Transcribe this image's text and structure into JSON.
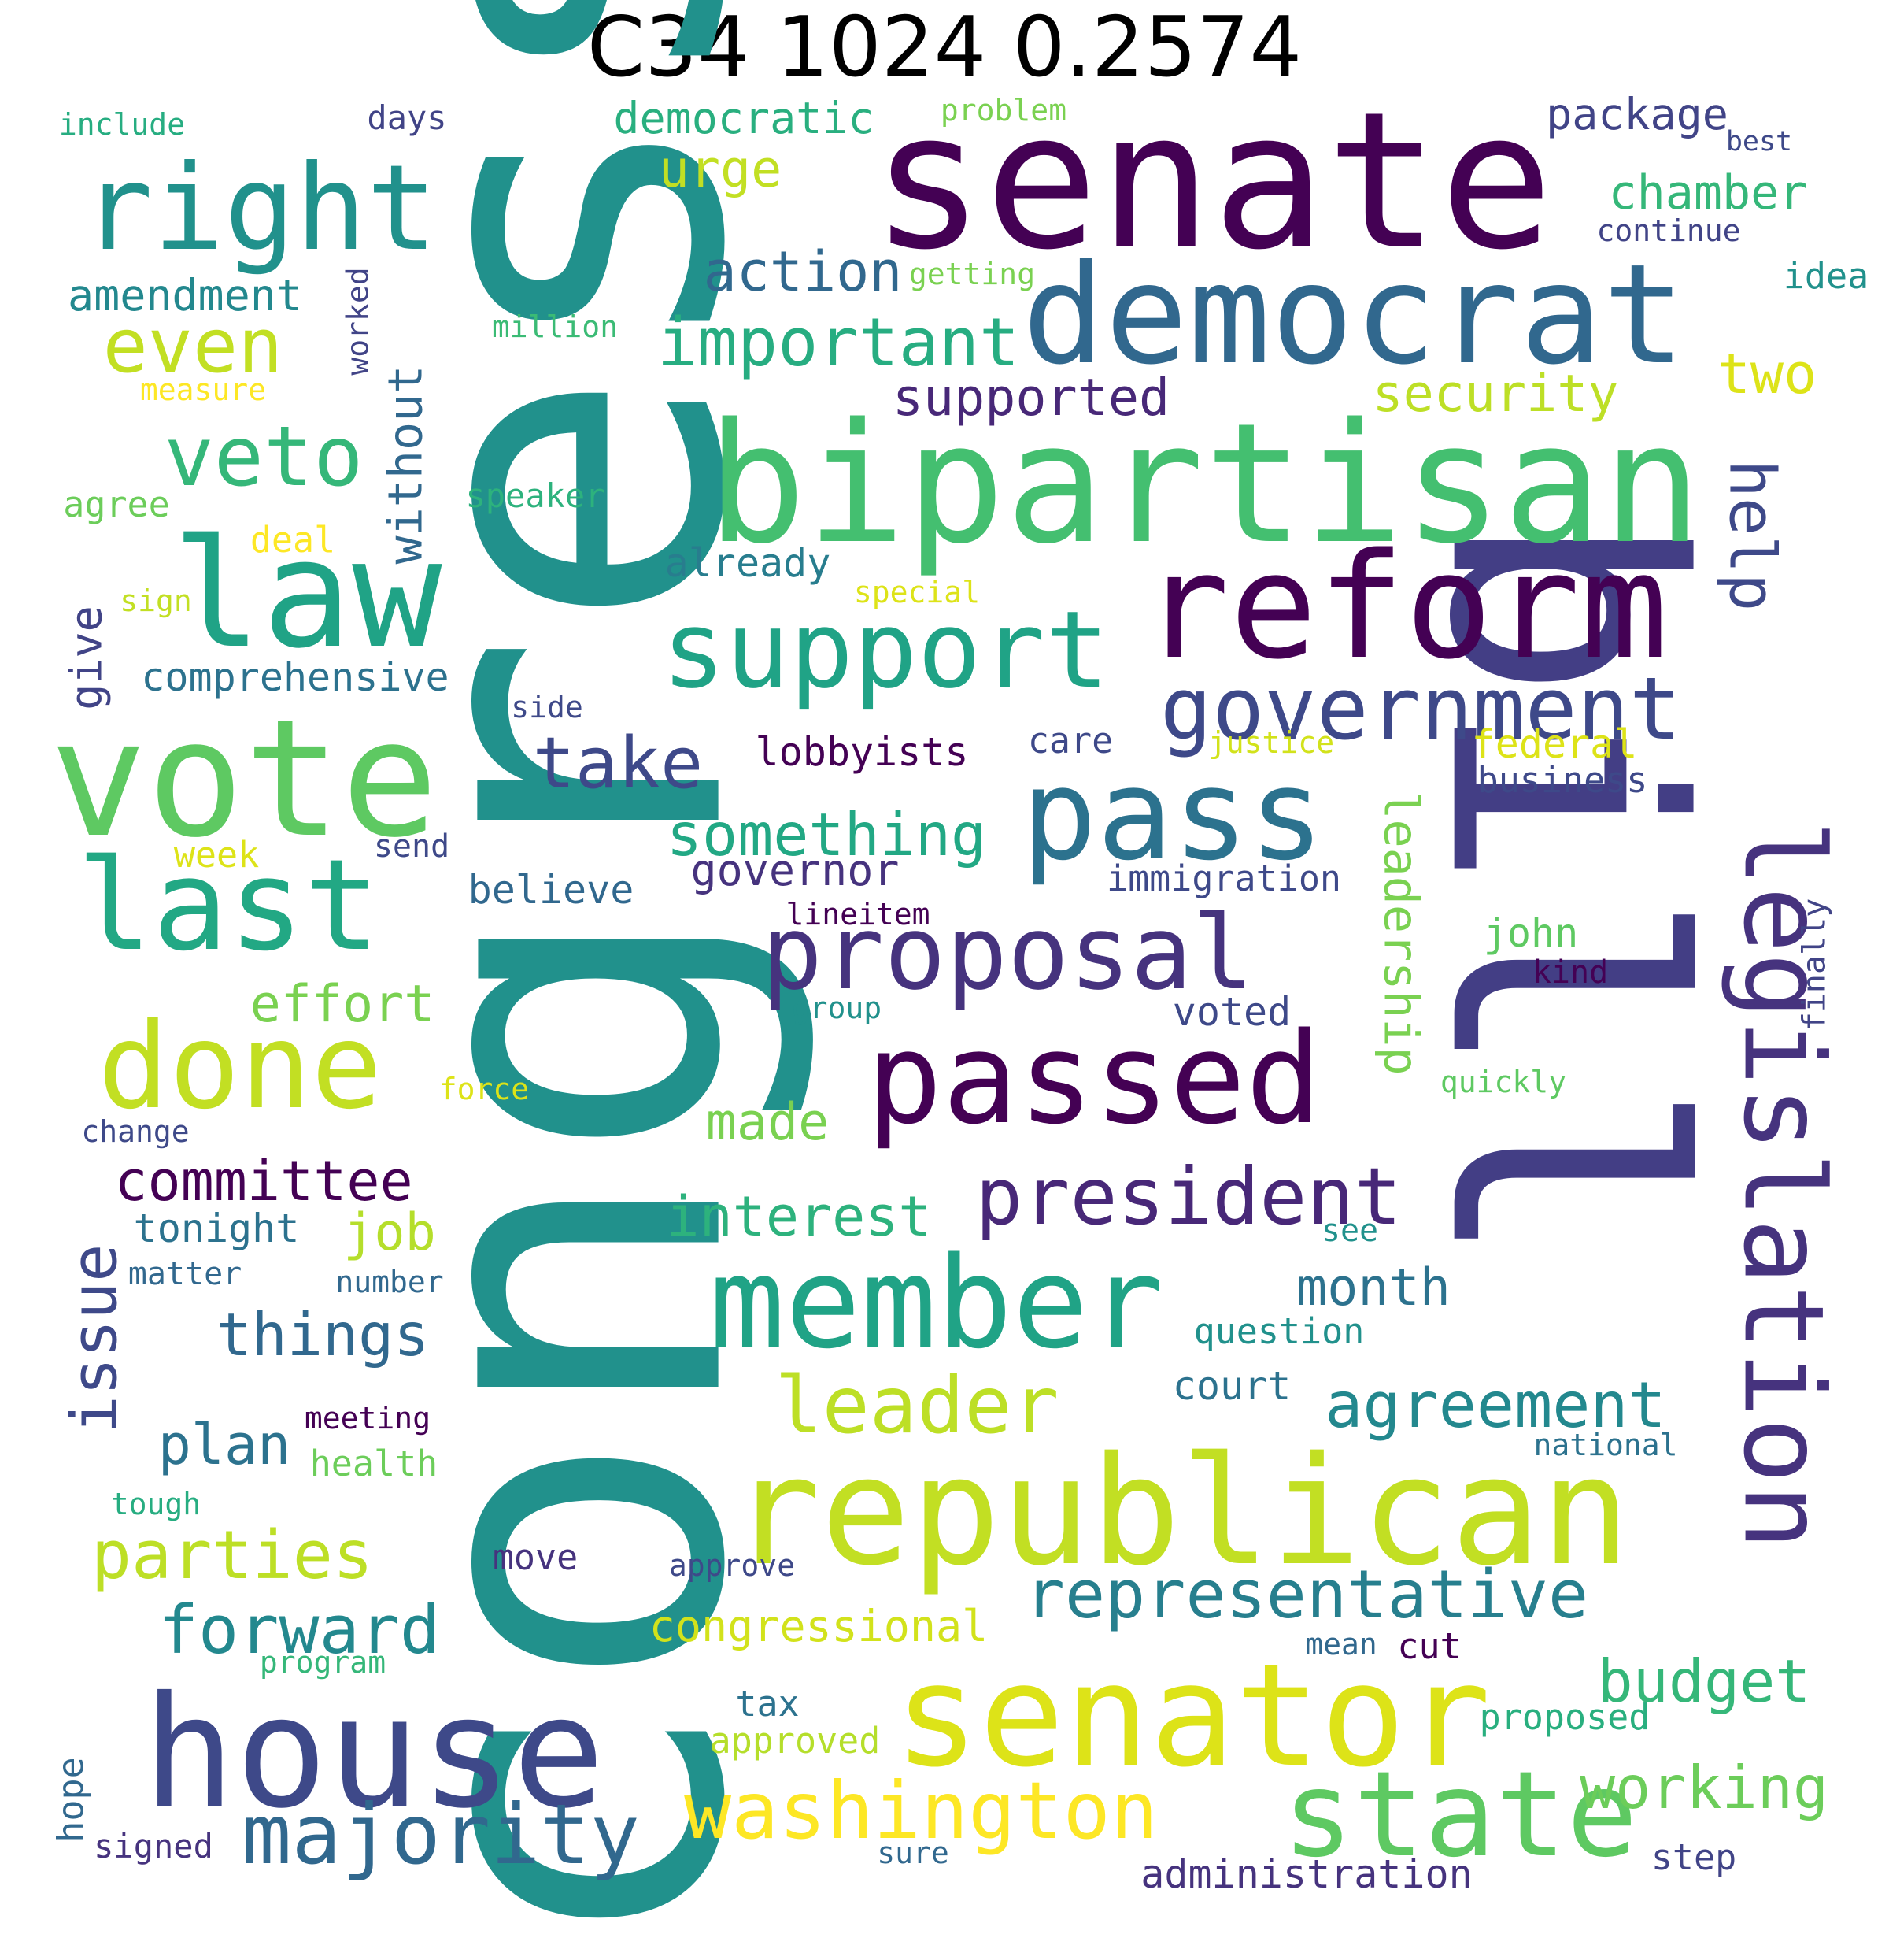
{
  "title": "C34 1024 0.2574",
  "colors": {
    "background": "#ffffff",
    "title": "#000000",
    "palette": "viridis"
  },
  "words": [
    {
      "text": "congress",
      "color": "#21918c",
      "rot": -90
    },
    {
      "text": "bill",
      "color": "#433e85",
      "rot": 90
    },
    {
      "text": "senate",
      "color": "#440154",
      "rot": 0
    },
    {
      "text": "bipartisan",
      "color": "#44bf70",
      "rot": 0
    },
    {
      "text": "democrat",
      "color": "#31688e",
      "rot": 0
    },
    {
      "text": "reform",
      "color": "#440154",
      "rot": 0
    },
    {
      "text": "republican",
      "color": "#c2df23",
      "rot": 0
    },
    {
      "text": "senator",
      "color": "#dde318",
      "rot": 0
    },
    {
      "text": "house",
      "color": "#3e4989",
      "rot": 0
    },
    {
      "text": "vote",
      "color": "#5ec962",
      "rot": 0
    },
    {
      "text": "law",
      "color": "#20a386",
      "rot": 0
    },
    {
      "text": "right",
      "color": "#21918c",
      "rot": 0
    },
    {
      "text": "legislation",
      "color": "#46337e",
      "rot": 90
    },
    {
      "text": "pass",
      "color": "#2c728e",
      "rot": 0
    },
    {
      "text": "passed",
      "color": "#440154",
      "rot": 0
    },
    {
      "text": "member",
      "color": "#20a386",
      "rot": 0
    },
    {
      "text": "support",
      "color": "#20a386",
      "rot": 0
    },
    {
      "text": "state",
      "color": "#5ec962",
      "rot": 0
    },
    {
      "text": "last",
      "color": "#22a884",
      "rot": 0
    },
    {
      "text": "done",
      "color": "#c2df23",
      "rot": 0
    },
    {
      "text": "proposal",
      "color": "#46337e",
      "rot": 0
    },
    {
      "text": "government",
      "color": "#3e4989",
      "rot": 0
    },
    {
      "text": "washington",
      "color": "#fde725",
      "rot": 0
    },
    {
      "text": "president",
      "color": "#482878",
      "rot": 0
    },
    {
      "text": "majority",
      "color": "#31688e",
      "rot": 0
    },
    {
      "text": "representative",
      "color": "#277f8e",
      "rot": 0
    },
    {
      "text": "leader",
      "color": "#bddf26",
      "rot": 0
    },
    {
      "text": "veto",
      "color": "#35b779",
      "rot": 0
    },
    {
      "text": "even",
      "color": "#c2df23",
      "rot": 0
    },
    {
      "text": "important",
      "color": "#27ad81",
      "rot": 0
    },
    {
      "text": "take",
      "color": "#3e4989",
      "rot": 0
    },
    {
      "text": "something",
      "color": "#22a884",
      "rot": 0
    },
    {
      "text": "help",
      "color": "#3e4989",
      "rot": 90
    },
    {
      "text": "leadership",
      "color": "#7ad151",
      "rot": 90
    },
    {
      "text": "parties",
      "color": "#bddf26",
      "rot": 0
    },
    {
      "text": "forward",
      "color": "#23888e",
      "rot": 0
    },
    {
      "text": "issue",
      "color": "#3e4989",
      "rot": -90
    },
    {
      "text": "interest",
      "color": "#2db27d",
      "rot": 0
    },
    {
      "text": "agreement",
      "color": "#23888e",
      "rot": 0
    },
    {
      "text": "budget",
      "color": "#35b779",
      "rot": 0
    },
    {
      "text": "working",
      "color": "#6ccd5a",
      "rot": 0
    },
    {
      "text": "committee",
      "color": "#440154",
      "rot": 0
    },
    {
      "text": "things",
      "color": "#31688e",
      "rot": 0
    },
    {
      "text": "plan",
      "color": "#2c728e",
      "rot": 0
    },
    {
      "text": "without",
      "color": "#31688e",
      "rot": -90
    },
    {
      "text": "action",
      "color": "#31688e",
      "rot": 0
    },
    {
      "text": "supported",
      "color": "#482878",
      "rot": 0
    },
    {
      "text": "security",
      "color": "#bddf26",
      "rot": 0
    },
    {
      "text": "two",
      "color": "#dde318",
      "rot": 0
    },
    {
      "text": "chamber",
      "color": "#35b779",
      "rot": 0
    },
    {
      "text": "urge",
      "color": "#c2df23",
      "rot": 0
    },
    {
      "text": "democratic",
      "color": "#29af7f",
      "rot": 0
    },
    {
      "text": "package",
      "color": "#414487",
      "rot": 0
    },
    {
      "text": "amendment",
      "color": "#23888e",
      "rot": 0
    },
    {
      "text": "effort",
      "color": "#7ad151",
      "rot": 0
    },
    {
      "text": "job",
      "color": "#b5de2b",
      "rot": 0
    },
    {
      "text": "month",
      "color": "#2c728e",
      "rot": 0
    },
    {
      "text": "made",
      "color": "#7ad151",
      "rot": 0
    },
    {
      "text": "congressional",
      "color": "#d2e21b",
      "rot": 0
    },
    {
      "text": "give",
      "color": "#414487",
      "rot": -90
    },
    {
      "text": "comprehensive",
      "color": "#2c728e",
      "rot": 0
    },
    {
      "text": "lobbyists",
      "color": "#440154",
      "rot": 0
    },
    {
      "text": "already",
      "color": "#287d8e",
      "rot": 0
    },
    {
      "text": "governor",
      "color": "#46337e",
      "rot": 0
    },
    {
      "text": "believe",
      "color": "#31688e",
      "rot": 0
    },
    {
      "text": "federal",
      "color": "#dde318",
      "rot": 0
    },
    {
      "text": "business",
      "color": "#3e4989",
      "rot": 0
    },
    {
      "text": "care",
      "color": "#3e4989",
      "rot": 0
    },
    {
      "text": "voted",
      "color": "#3e4989",
      "rot": 0
    },
    {
      "text": "court",
      "color": "#2c728e",
      "rot": 0
    },
    {
      "text": "question",
      "color": "#21918c",
      "rot": 0
    },
    {
      "text": "immigration",
      "color": "#3e4989",
      "rot": 0
    },
    {
      "text": "john",
      "color": "#5ec962",
      "rot": 0
    },
    {
      "text": "kind",
      "color": "#440154",
      "rot": 0
    },
    {
      "text": "finally",
      "color": "#414487",
      "rot": -90
    },
    {
      "text": "idea",
      "color": "#21918c",
      "rot": 0
    },
    {
      "text": "continue",
      "color": "#414487",
      "rot": 0
    },
    {
      "text": "best",
      "color": "#3e4989",
      "rot": 0
    },
    {
      "text": "problem",
      "color": "#7ad151",
      "rot": 0
    },
    {
      "text": "days",
      "color": "#414487",
      "rot": 0
    },
    {
      "text": "include",
      "color": "#27ad81",
      "rot": 0
    },
    {
      "text": "getting",
      "color": "#7ad151",
      "rot": 0
    },
    {
      "text": "million",
      "color": "#3bbb75",
      "rot": 0
    },
    {
      "text": "measure",
      "color": "#fde725",
      "rot": 0
    },
    {
      "text": "worked",
      "color": "#414487",
      "rot": -90
    },
    {
      "text": "agree",
      "color": "#6ccd5a",
      "rot": 0
    },
    {
      "text": "speaker",
      "color": "#2db27d",
      "rot": 0
    },
    {
      "text": "deal",
      "color": "#fde725",
      "rot": 0
    },
    {
      "text": "sign",
      "color": "#c2df23",
      "rot": 0
    },
    {
      "text": "special",
      "color": "#dde318",
      "rot": 0
    },
    {
      "text": "side",
      "color": "#3e4989",
      "rot": 0
    },
    {
      "text": "justice",
      "color": "#d2e21b",
      "rot": 0
    },
    {
      "text": "week",
      "color": "#dde318",
      "rot": 0
    },
    {
      "text": "send",
      "color": "#3e4989",
      "rot": 0
    },
    {
      "text": "lineitem",
      "color": "#440154",
      "rot": 0
    },
    {
      "text": "group",
      "color": "#21918c",
      "rot": 0
    },
    {
      "text": "force",
      "color": "#dde318",
      "rot": 0
    },
    {
      "text": "quickly",
      "color": "#5ec962",
      "rot": 0
    },
    {
      "text": "change",
      "color": "#3e4989",
      "rot": 0
    },
    {
      "text": "tonight",
      "color": "#2c728e",
      "rot": 0
    },
    {
      "text": "matter",
      "color": "#31688e",
      "rot": 0
    },
    {
      "text": "number",
      "color": "#31688e",
      "rot": 0
    },
    {
      "text": "see",
      "color": "#21918c",
      "rot": 0
    },
    {
      "text": "meeting",
      "color": "#440154",
      "rot": 0
    },
    {
      "text": "health",
      "color": "#6ccd5a",
      "rot": 0
    },
    {
      "text": "national",
      "color": "#2c728e",
      "rot": 0
    },
    {
      "text": "tough",
      "color": "#27ad81",
      "rot": 0
    },
    {
      "text": "move",
      "color": "#46337e",
      "rot": 0
    },
    {
      "text": "approve",
      "color": "#3e4989",
      "rot": 0
    },
    {
      "text": "program",
      "color": "#35b779",
      "rot": 0
    },
    {
      "text": "mean",
      "color": "#31688e",
      "rot": 0
    },
    {
      "text": "cut",
      "color": "#440154",
      "rot": 0
    },
    {
      "text": "proposed",
      "color": "#29af7f",
      "rot": 0
    },
    {
      "text": "tax",
      "color": "#2c728e",
      "rot": 0
    },
    {
      "text": "approved",
      "color": "#b5de2b",
      "rot": 0
    },
    {
      "text": "hope",
      "color": "#31688e",
      "rot": -90
    },
    {
      "text": "signed",
      "color": "#46337e",
      "rot": 0
    },
    {
      "text": "sure",
      "color": "#31688e",
      "rot": 0
    },
    {
      "text": "administration",
      "color": "#46337e",
      "rot": 0
    },
    {
      "text": "step",
      "color": "#414487",
      "rot": 0
    }
  ]
}
